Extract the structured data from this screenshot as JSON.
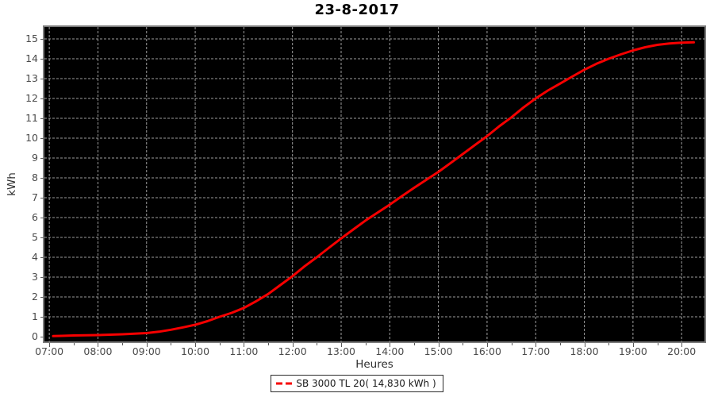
{
  "window": {
    "title": "23-8-2017"
  },
  "chart_data": {
    "type": "line",
    "title": "23-8-2017",
    "xlabel": "Heures",
    "ylabel": "kWh",
    "plot_background": "#000000",
    "grid": true,
    "grid_color": "#9b9b9b",
    "x_ticks": [
      "07:00",
      "08:00",
      "09:00",
      "10:00",
      "11:00",
      "12:00",
      "13:00",
      "14:00",
      "15:00",
      "16:00",
      "17:00",
      "18:00",
      "19:00",
      "20:00"
    ],
    "x_tick_hours": [
      7,
      8,
      9,
      10,
      11,
      12,
      13,
      14,
      15,
      16,
      17,
      18,
      19,
      20
    ],
    "x_minor_tick_interval_hours": 0.5,
    "y_ticks": [
      0,
      1,
      2,
      3,
      4,
      5,
      6,
      7,
      8,
      9,
      10,
      11,
      12,
      13,
      14,
      15
    ],
    "xlim_hours": [
      6.9,
      20.47
    ],
    "ylim": [
      -0.24,
      15.6
    ],
    "legend_position": "bottom-center",
    "series": [
      {
        "name": "SB 3000 TL 20",
        "legend_label": "SB 3000 TL 20( 14,830 kWh )",
        "total": "14,830 kWh",
        "color": "#f60000",
        "points": [
          [
            7.08,
            0.03
          ],
          [
            7.25,
            0.04
          ],
          [
            7.5,
            0.06
          ],
          [
            7.75,
            0.07
          ],
          [
            8.0,
            0.08
          ],
          [
            8.25,
            0.1
          ],
          [
            8.5,
            0.12
          ],
          [
            8.75,
            0.15
          ],
          [
            9.0,
            0.18
          ],
          [
            9.25,
            0.25
          ],
          [
            9.5,
            0.35
          ],
          [
            9.75,
            0.47
          ],
          [
            10.0,
            0.6
          ],
          [
            10.25,
            0.78
          ],
          [
            10.5,
            1.0
          ],
          [
            10.75,
            1.2
          ],
          [
            11.0,
            1.45
          ],
          [
            11.25,
            1.78
          ],
          [
            11.5,
            2.15
          ],
          [
            11.75,
            2.6
          ],
          [
            12.0,
            3.05
          ],
          [
            12.25,
            3.55
          ],
          [
            12.5,
            4.0
          ],
          [
            12.75,
            4.48
          ],
          [
            13.0,
            4.95
          ],
          [
            13.25,
            5.4
          ],
          [
            13.5,
            5.85
          ],
          [
            13.75,
            6.25
          ],
          [
            14.0,
            6.65
          ],
          [
            14.25,
            7.08
          ],
          [
            14.5,
            7.5
          ],
          [
            14.75,
            7.9
          ],
          [
            15.0,
            8.3
          ],
          [
            15.25,
            8.75
          ],
          [
            15.5,
            9.2
          ],
          [
            15.75,
            9.65
          ],
          [
            16.0,
            10.1
          ],
          [
            16.25,
            10.6
          ],
          [
            16.5,
            11.05
          ],
          [
            16.75,
            11.55
          ],
          [
            17.0,
            12.0
          ],
          [
            17.25,
            12.4
          ],
          [
            17.5,
            12.75
          ],
          [
            17.75,
            13.1
          ],
          [
            18.0,
            13.45
          ],
          [
            18.25,
            13.75
          ],
          [
            18.5,
            14.0
          ],
          [
            18.75,
            14.22
          ],
          [
            19.0,
            14.42
          ],
          [
            19.25,
            14.58
          ],
          [
            19.5,
            14.7
          ],
          [
            19.75,
            14.77
          ],
          [
            20.0,
            14.81
          ],
          [
            20.25,
            14.83
          ]
        ]
      }
    ]
  },
  "colors": {
    "curve": "#f60000",
    "plot_border": "#7c7c7c",
    "tick": "#5a5a5a",
    "tick_label": "#4a4a4a",
    "title_text": "#000000"
  }
}
